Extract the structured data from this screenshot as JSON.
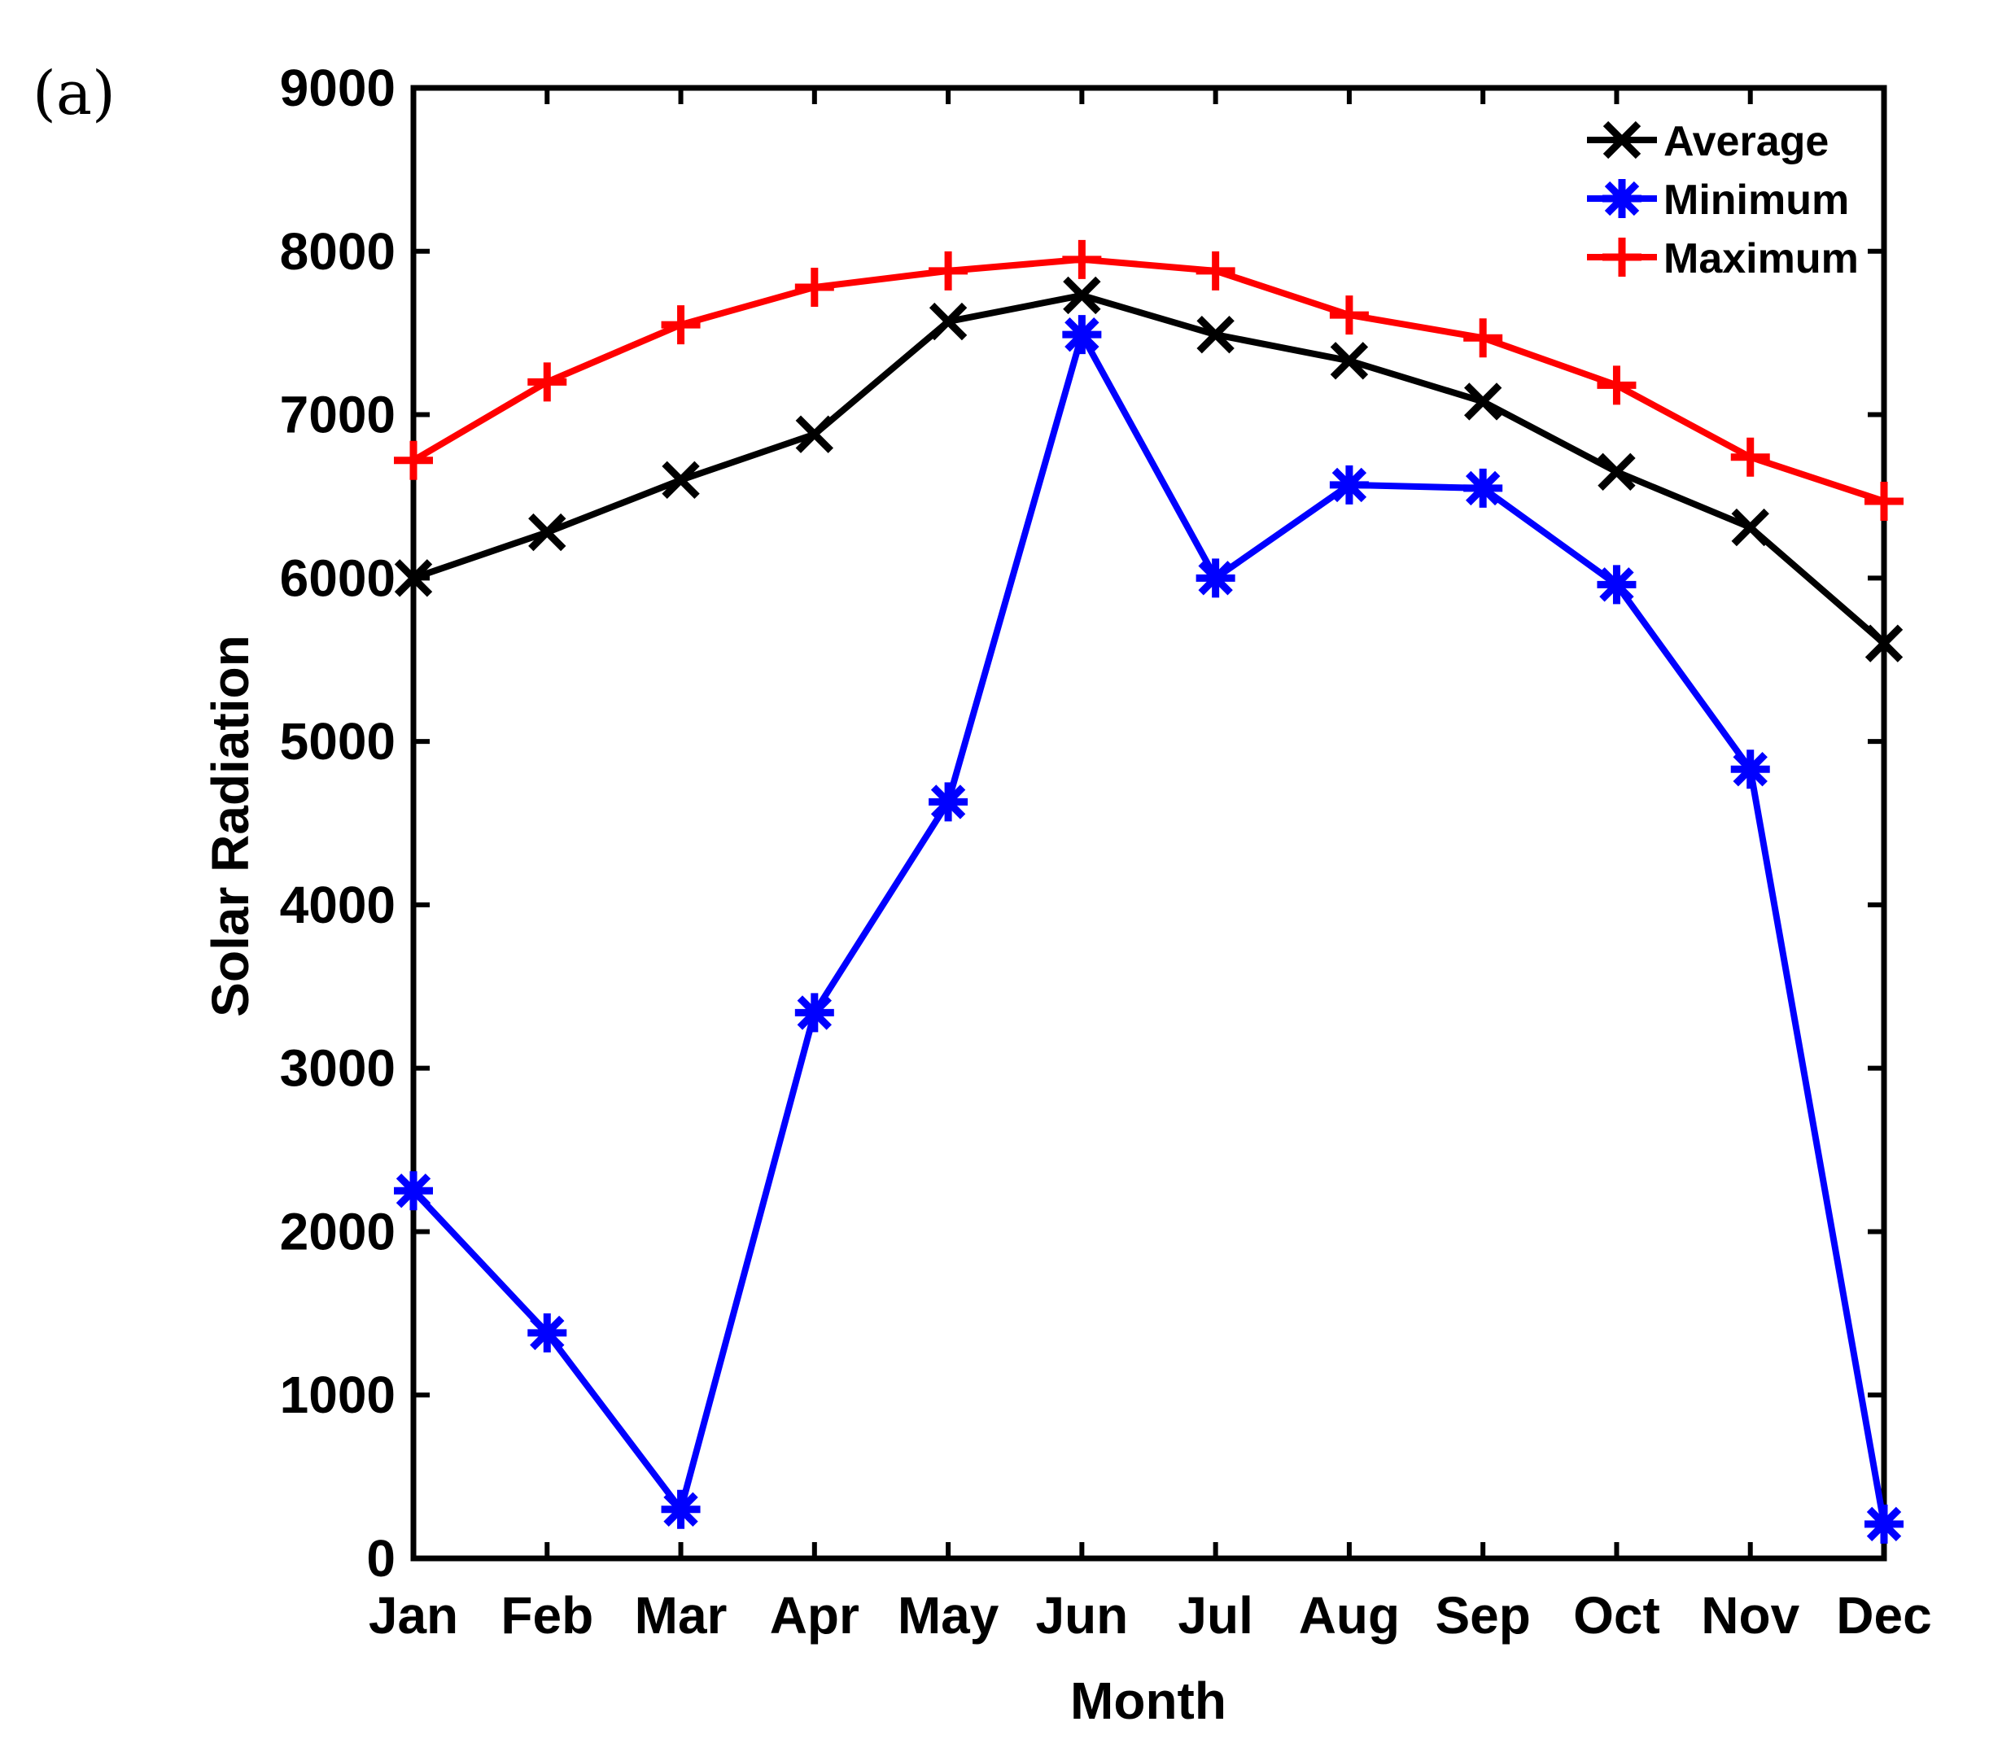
{
  "panel_label": "(a)",
  "chart_data": {
    "type": "line",
    "title": "",
    "xlabel": "Month",
    "ylabel": "Solar Radiation",
    "categories": [
      "Jan",
      "Feb",
      "Mar",
      "Apr",
      "May",
      "Jun",
      "Jul",
      "Aug",
      "Sep",
      "Oct",
      "Nov",
      "Dec"
    ],
    "ylim": [
      0,
      9000
    ],
    "yticks": [
      0,
      1000,
      2000,
      3000,
      4000,
      5000,
      6000,
      7000,
      8000,
      9000
    ],
    "grid": false,
    "legend_position": "top-right",
    "series": [
      {
        "name": "Average",
        "color": "#000000",
        "marker": "x",
        "values": [
          6000,
          6280,
          6600,
          6880,
          7570,
          7730,
          7490,
          7330,
          7080,
          6650,
          6310,
          5600
        ]
      },
      {
        "name": "Minimum",
        "color": "#0000ff",
        "marker": "asterisk",
        "values": [
          2250,
          1380,
          300,
          3340,
          4630,
          7490,
          6000,
          6570,
          6550,
          5960,
          4830,
          210
        ]
      },
      {
        "name": "Maximum",
        "color": "#ff0000",
        "marker": "plus",
        "values": [
          6720,
          7200,
          7550,
          7780,
          7880,
          7950,
          7880,
          7610,
          7470,
          7180,
          6740,
          6470
        ]
      }
    ]
  }
}
